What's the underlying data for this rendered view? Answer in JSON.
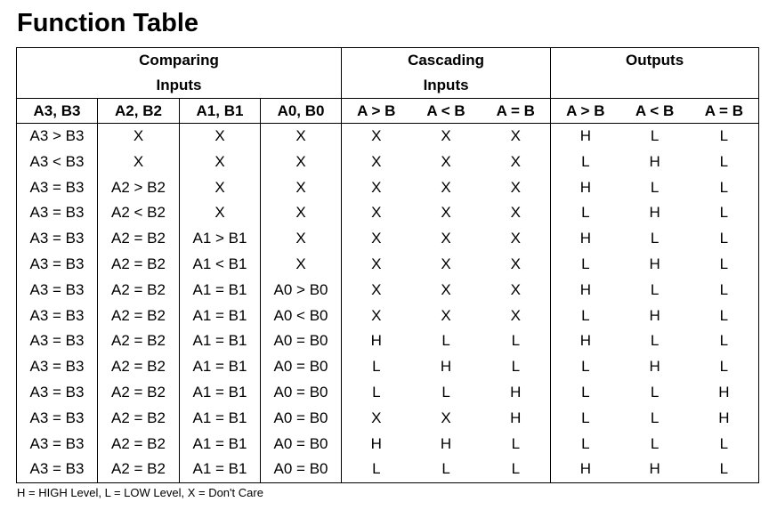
{
  "title": "Function Table",
  "groups": {
    "comparing": [
      "Comparing",
      "Inputs"
    ],
    "cascading": [
      "Cascading",
      "Inputs"
    ],
    "outputs": [
      "Outputs"
    ]
  },
  "columns": [
    "A3, B3",
    "A2, B2",
    "A1, B1",
    "A0, B0",
    "A > B",
    "A < B",
    "A = B",
    "A > B",
    "A < B",
    "A = B"
  ],
  "rows": [
    [
      "A3 > B3",
      "X",
      "X",
      "X",
      "X",
      "X",
      "X",
      "H",
      "L",
      "L"
    ],
    [
      "A3 < B3",
      "X",
      "X",
      "X",
      "X",
      "X",
      "X",
      "L",
      "H",
      "L"
    ],
    [
      "A3 = B3",
      "A2 > B2",
      "X",
      "X",
      "X",
      "X",
      "X",
      "H",
      "L",
      "L"
    ],
    [
      "A3 = B3",
      "A2 < B2",
      "X",
      "X",
      "X",
      "X",
      "X",
      "L",
      "H",
      "L"
    ],
    [
      "A3 = B3",
      "A2 = B2",
      "A1 > B1",
      "X",
      "X",
      "X",
      "X",
      "H",
      "L",
      "L"
    ],
    [
      "A3 = B3",
      "A2 = B2",
      "A1 < B1",
      "X",
      "X",
      "X",
      "X",
      "L",
      "H",
      "L"
    ],
    [
      "A3 = B3",
      "A2 = B2",
      "A1 = B1",
      "A0 > B0",
      "X",
      "X",
      "X",
      "H",
      "L",
      "L"
    ],
    [
      "A3 = B3",
      "A2 = B2",
      "A1 = B1",
      "A0 < B0",
      "X",
      "X",
      "X",
      "L",
      "H",
      "L"
    ],
    [
      "A3 = B3",
      "A2 = B2",
      "A1 = B1",
      "A0 = B0",
      "H",
      "L",
      "L",
      "H",
      "L",
      "L"
    ],
    [
      "A3 = B3",
      "A2 = B2",
      "A1 = B1",
      "A0 = B0",
      "L",
      "H",
      "L",
      "L",
      "H",
      "L"
    ],
    [
      "A3 = B3",
      "A2 = B2",
      "A1 = B1",
      "A0 = B0",
      "L",
      "L",
      "H",
      "L",
      "L",
      "H"
    ],
    [
      "A3 = B3",
      "A2 = B2",
      "A1 = B1",
      "A0 = B0",
      "X",
      "X",
      "H",
      "L",
      "L",
      "H"
    ],
    [
      "A3 = B3",
      "A2 = B2",
      "A1 = B1",
      "A0 = B0",
      "H",
      "H",
      "L",
      "L",
      "L",
      "L"
    ],
    [
      "A3 = B3",
      "A2 = B2",
      "A1 = B1",
      "A0 = B0",
      "L",
      "L",
      "L",
      "H",
      "H",
      "L"
    ]
  ],
  "footnote": "H = HIGH Level, L = LOW Level, X = Don't Care"
}
